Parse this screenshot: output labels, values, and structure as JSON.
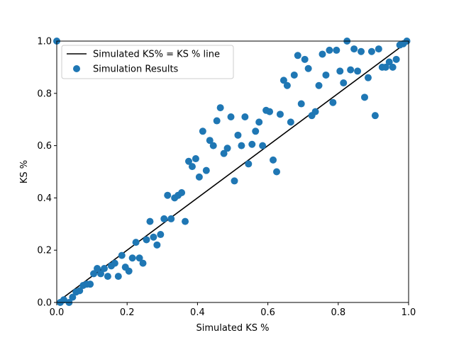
{
  "chart_data": {
    "type": "scatter",
    "title": "",
    "xlabel": "Simulated KS %",
    "ylabel": "KS %",
    "xlim": [
      0.0,
      1.0
    ],
    "ylim": [
      0.0,
      1.0
    ],
    "xticks": [
      "0.0",
      "0.2",
      "0.4",
      "0.6",
      "0.8",
      "1.0"
    ],
    "yticks": [
      "0.0",
      "0.2",
      "0.4",
      "0.6",
      "0.8",
      "1.0"
    ],
    "grid": false,
    "legend_position": "upper-left",
    "colors": {
      "scatter": "#1f77b4",
      "line": "#000000"
    },
    "line": {
      "name": "Simulated KS% = KS % line",
      "x": [
        0.0,
        1.0
      ],
      "y": [
        0.0,
        1.0
      ]
    },
    "series": [
      {
        "name": "Simulation Results",
        "x": [
          0.0,
          0.01,
          0.02,
          0.035,
          0.045,
          0.055,
          0.065,
          0.075,
          0.085,
          0.095,
          0.105,
          0.115,
          0.125,
          0.135,
          0.145,
          0.155,
          0.165,
          0.175,
          0.185,
          0.195,
          0.205,
          0.215,
          0.225,
          0.235,
          0.245,
          0.255,
          0.265,
          0.275,
          0.285,
          0.295,
          0.305,
          0.315,
          0.325,
          0.335,
          0.345,
          0.355,
          0.365,
          0.375,
          0.385,
          0.395,
          0.405,
          0.415,
          0.425,
          0.435,
          0.445,
          0.455,
          0.465,
          0.475,
          0.485,
          0.495,
          0.505,
          0.515,
          0.525,
          0.535,
          0.545,
          0.555,
          0.565,
          0.575,
          0.585,
          0.595,
          0.605,
          0.615,
          0.625,
          0.635,
          0.645,
          0.655,
          0.665,
          0.675,
          0.685,
          0.695,
          0.705,
          0.715,
          0.725,
          0.735,
          0.745,
          0.755,
          0.765,
          0.775,
          0.785,
          0.795,
          0.805,
          0.815,
          0.825,
          0.835,
          0.845,
          0.855,
          0.865,
          0.875,
          0.885,
          0.895,
          0.905,
          0.915,
          0.925,
          0.935,
          0.945,
          0.955,
          0.965,
          0.975,
          0.985,
          0.995
        ],
        "y": [
          1.0,
          0.0,
          0.01,
          0.0,
          0.02,
          0.04,
          0.045,
          0.065,
          0.07,
          0.07,
          0.11,
          0.13,
          0.11,
          0.13,
          0.1,
          0.14,
          0.15,
          0.1,
          0.18,
          0.135,
          0.12,
          0.17,
          0.23,
          0.17,
          0.15,
          0.24,
          0.31,
          0.25,
          0.22,
          0.26,
          0.32,
          0.41,
          0.32,
          0.4,
          0.41,
          0.42,
          0.31,
          0.54,
          0.52,
          0.55,
          0.48,
          0.655,
          0.505,
          0.62,
          0.6,
          0.695,
          0.745,
          0.57,
          0.59,
          0.71,
          0.465,
          0.64,
          0.6,
          0.71,
          0.53,
          0.605,
          0.655,
          0.69,
          0.6,
          0.735,
          0.73,
          0.545,
          0.5,
          0.72,
          0.85,
          0.83,
          0.69,
          0.87,
          0.945,
          0.76,
          0.93,
          0.895,
          0.715,
          0.73,
          0.83,
          0.95,
          0.87,
          0.965,
          0.765,
          0.965,
          0.885,
          0.84,
          1.0,
          0.89,
          0.97,
          0.885,
          0.96,
          0.785,
          0.86,
          0.96,
          0.715,
          0.97,
          0.9,
          0.9,
          0.92,
          0.9,
          0.93,
          0.985,
          0.99,
          1.0
        ]
      }
    ]
  }
}
